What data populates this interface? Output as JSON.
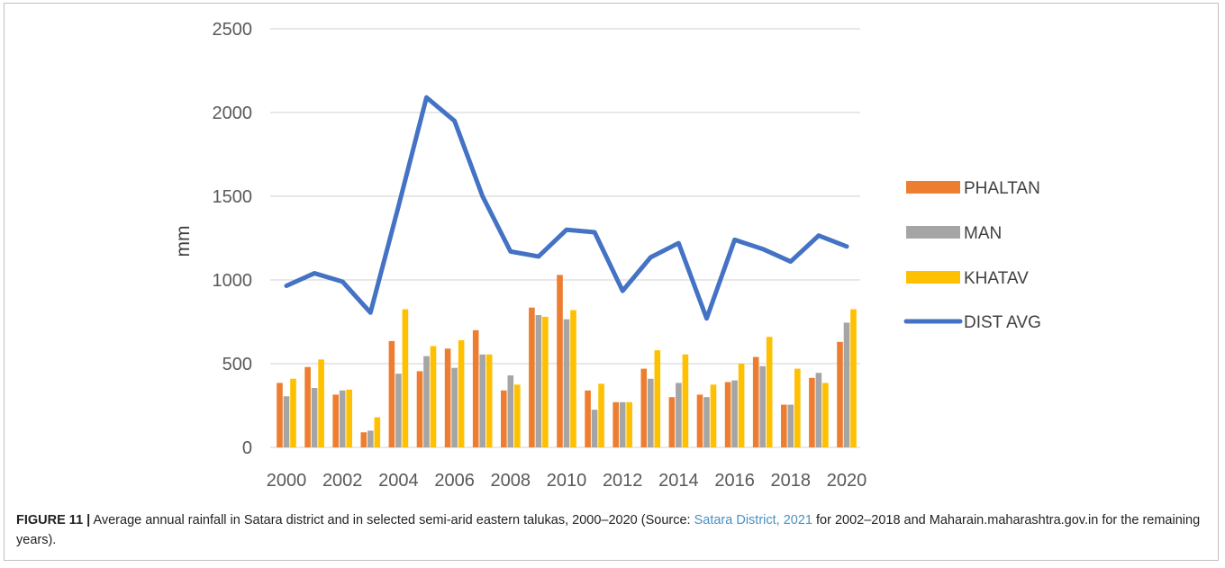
{
  "chart_data": {
    "type": "bar",
    "ylabel": "mm",
    "xlabel": "",
    "ylim": [
      0,
      2500
    ],
    "yticks": [
      "0",
      "500",
      "1000",
      "1500",
      "2000",
      "2500"
    ],
    "x": [
      2000,
      2001,
      2002,
      2003,
      2004,
      2005,
      2006,
      2007,
      2008,
      2009,
      2010,
      2011,
      2012,
      2013,
      2014,
      2015,
      2016,
      2017,
      2018,
      2019,
      2020
    ],
    "x_tick_labels": [
      "2000",
      "2002",
      "2004",
      "2006",
      "2008",
      "2010",
      "2012",
      "2014",
      "2016",
      "2018",
      "2020"
    ],
    "grid": true,
    "legend": "right",
    "series": [
      {
        "name": "PHALTAN",
        "type": "bar",
        "color": "#ed7d31",
        "values": [
          385,
          480,
          315,
          90,
          635,
          455,
          590,
          700,
          340,
          835,
          1030,
          340,
          270,
          470,
          300,
          315,
          390,
          540,
          255,
          415,
          630
        ]
      },
      {
        "name": "MAN",
        "type": "bar",
        "color": "#a5a5a5",
        "values": [
          305,
          355,
          340,
          100,
          440,
          545,
          475,
          555,
          430,
          790,
          765,
          225,
          270,
          410,
          385,
          300,
          400,
          485,
          255,
          445,
          745
        ]
      },
      {
        "name": "KHATAV",
        "type": "bar",
        "color": "#ffc000",
        "values": [
          410,
          525,
          345,
          180,
          825,
          605,
          640,
          555,
          375,
          780,
          820,
          380,
          270,
          580,
          555,
          375,
          500,
          660,
          470,
          385,
          825
        ]
      },
      {
        "name": "DIST AVG",
        "type": "line",
        "color": "#4472c4",
        "values": [
          965,
          1040,
          990,
          805,
          1440,
          2090,
          1950,
          1500,
          1170,
          1140,
          1300,
          1285,
          935,
          1135,
          1220,
          770,
          1240,
          1185,
          1110,
          1265,
          1200
        ]
      }
    ]
  },
  "caption": {
    "figure_label": "FIGURE 11 |",
    "text_before_link": " Average annual rainfall in Satara district and in selected semi-arid eastern talukas, 2000–2020 (Source: ",
    "link_text": "Satara District, 2021",
    "text_after_link": " for 2002–2018 and Maharain.maharashtra.gov.in for the remaining years)."
  }
}
